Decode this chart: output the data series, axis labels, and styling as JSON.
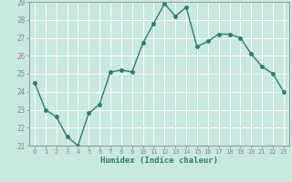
{
  "x": [
    0,
    1,
    2,
    3,
    4,
    5,
    6,
    7,
    8,
    9,
    10,
    11,
    12,
    13,
    14,
    15,
    16,
    17,
    18,
    19,
    20,
    21,
    22,
    23
  ],
  "y": [
    24.5,
    23.0,
    22.6,
    21.5,
    21.0,
    22.8,
    23.3,
    25.1,
    25.2,
    25.1,
    26.7,
    27.8,
    28.9,
    28.2,
    28.7,
    26.5,
    26.8,
    27.2,
    27.2,
    27.0,
    26.1,
    25.4,
    25.0,
    24.0
  ],
  "xlabel": "Humidex (Indice chaleur)",
  "ylim": [
    21,
    29
  ],
  "xlim": [
    -0.5,
    23.5
  ],
  "yticks": [
    21,
    22,
    23,
    24,
    25,
    26,
    27,
    28,
    29
  ],
  "xticks": [
    0,
    1,
    2,
    3,
    4,
    5,
    6,
    7,
    8,
    9,
    10,
    11,
    12,
    13,
    14,
    15,
    16,
    17,
    18,
    19,
    20,
    21,
    22,
    23
  ],
  "line_color": "#2e7d6e",
  "marker_size": 2.5,
  "bg_color": "#c8e8e0",
  "grid_color": "#b0d4cc"
}
